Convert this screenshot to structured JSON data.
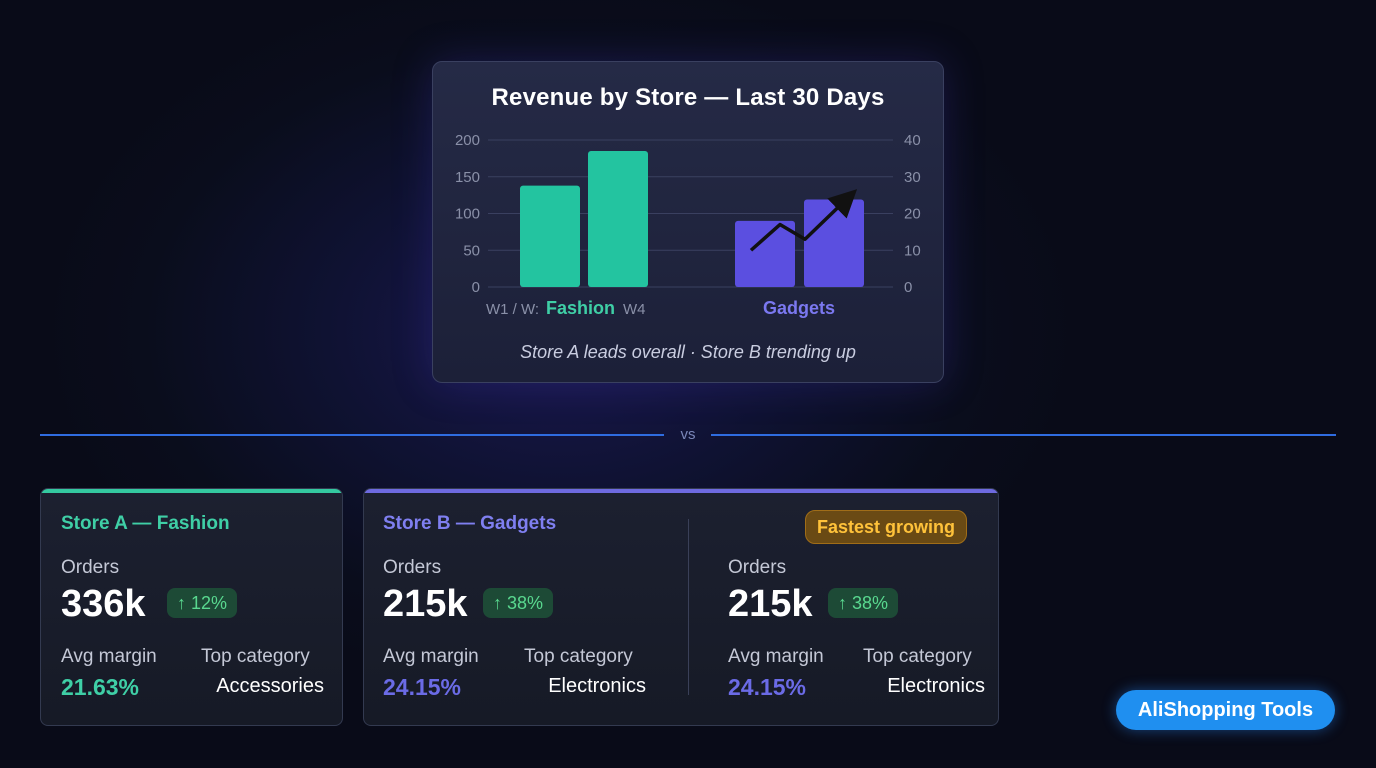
{
  "chart_data": {
    "type": "bar",
    "title": "Revenue by Store — Last 30 Days",
    "caption": "Store A leads overall · Store B trending up",
    "y_left": {
      "ticks": [
        "200",
        "150",
        "100",
        "50",
        "0"
      ],
      "range": [
        0,
        200
      ]
    },
    "y_right": {
      "ticks": [
        "40",
        "30",
        "20",
        "10",
        "0"
      ],
      "range": [
        0,
        40
      ]
    },
    "groups": [
      {
        "name": "Fashion",
        "week_labels": [
          "W1 / W:",
          "W4"
        ],
        "values": [
          138,
          185
        ],
        "color": "#23c4a0"
      },
      {
        "name": "Gadgets",
        "values": [
          90,
          119
        ],
        "color": "#5b4fe0"
      }
    ],
    "trend_line": {
      "values": [
        50,
        85,
        65,
        120
      ],
      "color": "#111111"
    }
  },
  "divider": {
    "label": "vs"
  },
  "store_a": {
    "name": "Store A — Fashion",
    "orders_label": "Orders",
    "orders": "336k",
    "delta": "↑ 12%",
    "margin_label": "Avg margin",
    "margin": "21.63%",
    "category_label": "Top category",
    "category": "Accessories"
  },
  "store_b": {
    "name": "Store B — Gadgets",
    "badge": "Fastest growing",
    "left": {
      "orders_label": "Orders",
      "orders": "215k",
      "delta": "↑ 38%",
      "margin_label": "Avg margin",
      "margin": "24.15%",
      "category_label": "Top category",
      "category": "Electronics"
    },
    "right": {
      "orders_label": "Orders",
      "orders": "215k",
      "delta": "↑ 38%",
      "margin_label": "Avg margin",
      "margin": "24.15%",
      "category_label": "Top category",
      "category": "Electronics"
    }
  },
  "brand": {
    "label": "AliShopping Tools"
  }
}
